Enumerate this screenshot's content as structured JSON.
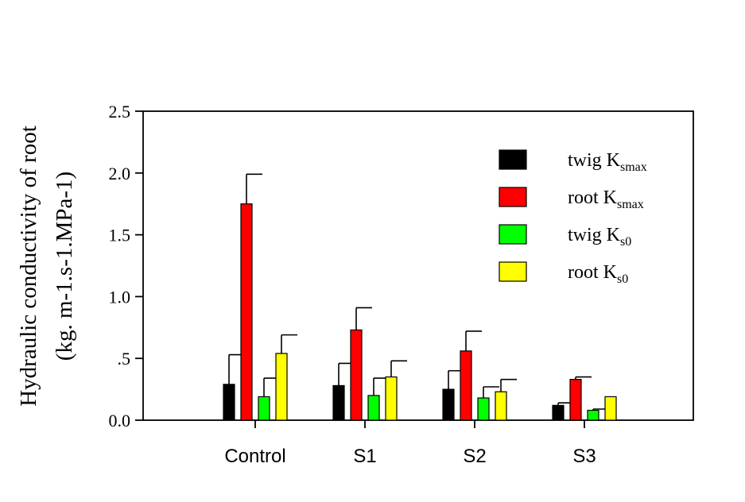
{
  "chart_data": {
    "type": "bar",
    "categories": [
      "Control",
      "S1",
      "S2",
      "S3"
    ],
    "ylabel_line1": "Hydraulic conductivity of root",
    "ylabel_line2": "(kg. m-1.s-1.MPa-1)",
    "ylim": [
      0,
      2.5
    ],
    "yticks": [
      {
        "value": 0.0,
        "label": "0.0"
      },
      {
        "value": 0.5,
        "label": ".5"
      },
      {
        "value": 1.0,
        "label": "1.0"
      },
      {
        "value": 1.5,
        "label": "1.5"
      },
      {
        "value": 2.0,
        "label": "2.0"
      },
      {
        "value": 2.5,
        "label": "2.5"
      }
    ],
    "grid": false,
    "legend_position": "top-right",
    "error_bars": true,
    "series": [
      {
        "name": "twig Ksmax",
        "name_main": "twig K",
        "name_sub": "smax",
        "color": "#000000",
        "values": [
          0.29,
          0.28,
          0.25,
          0.12
        ],
        "errors": [
          0.24,
          0.18,
          0.15,
          0.02
        ]
      },
      {
        "name": "root Ksmax",
        "name_main": "root K",
        "name_sub": "smax",
        "color": "#ff0000",
        "values": [
          1.75,
          0.73,
          0.56,
          0.33
        ],
        "errors": [
          0.24,
          0.18,
          0.16,
          0.02
        ]
      },
      {
        "name": "twig Ks0",
        "name_main": "twig K",
        "name_sub": "s0",
        "color": "#00ff00",
        "values": [
          0.19,
          0.2,
          0.18,
          0.08
        ],
        "errors": [
          0.15,
          0.14,
          0.09,
          0.01
        ]
      },
      {
        "name": "root Ks0",
        "name_main": "root K",
        "name_sub": "s0",
        "color": "#ffff00",
        "values": [
          0.54,
          0.35,
          0.23,
          0.19
        ],
        "errors": [
          0.15,
          0.13,
          0.1,
          0.0
        ]
      }
    ]
  }
}
